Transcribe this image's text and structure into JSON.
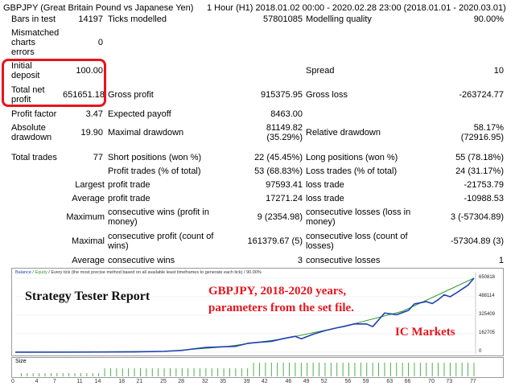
{
  "report": {
    "symbol_line": "GBPJPY (Great Britain Pound vs Japanese Yen)",
    "period_line": "1 Hour (H1) 2018.01.02 00:00 - 2020.02.28 23:00 (2018.01.01 - 2020.03.01)"
  },
  "stats": {
    "bars_label": "Bars in test",
    "bars_value": "14197",
    "ticks_label": "Ticks modelled",
    "ticks_value": "57801085",
    "quality_label": "Modelling quality",
    "quality_value": "90.00%",
    "mismatch_label_1": "Mismatched",
    "mismatch_label_2": "charts",
    "mismatch_label_3": "errors",
    "mismatch_value": "0",
    "deposit_label_1": "Initial",
    "deposit_label_2": "deposit",
    "deposit_value": "100.00",
    "spread_label": "Spread",
    "spread_value": "10",
    "netprofit_label_1": "Total net",
    "netprofit_label_2": "profit",
    "netprofit_value": "651651.18",
    "gross_profit_label": "Gross profit",
    "gross_profit_value": "915375.95",
    "gross_loss_label": "Gross loss",
    "gross_loss_value": "-263724.77",
    "pf_label": "Profit factor",
    "pf_value": "3.47",
    "ep_label": "Expected payoff",
    "ep_value": "8463.00",
    "absdd_label_1": "Absolute",
    "absdd_label_2": "drawdown",
    "absdd_value": "19.90",
    "maxdd_label": "Maximal drawdown",
    "maxdd_value_1": "81149.82",
    "maxdd_value_2": "(35.29%)",
    "reldd_label": "Relative drawdown",
    "reldd_value_1": "58.17%",
    "reldd_value_2": "(72916.95)",
    "trades_label": "Total trades",
    "trades_value": "77",
    "short_label": "Short positions (won %)",
    "short_value": "22 (45.45%)",
    "long_label": "Long positions (won %)",
    "long_value": "55 (78.18%)",
    "ptrades_label": "Profit trades (% of total)",
    "ptrades_value": "53 (68.83%)",
    "ltrades_label": "Loss trades (% of total)",
    "ltrades_value": "24 (31.17%)",
    "largest_label": "Largest",
    "largest_profit_label": "profit trade",
    "largest_profit_value": "97593.41",
    "largest_loss_label": "loss trade",
    "largest_loss_value": "-21753.79",
    "average_label": "Average",
    "avg_profit_label": "profit trade",
    "avg_profit_value": "17271.24",
    "avg_loss_label": "loss trade",
    "avg_loss_value": "-10988.53",
    "maximum_label": "Maximum",
    "max_wins_label_1": "consecutive wins (profit in",
    "max_wins_label_2": "money)",
    "max_wins_value": "9 (2354.98)",
    "max_losses_label_1": "consecutive losses (loss in",
    "max_losses_label_2": "money)",
    "max_losses_value": "3 (-57304.89)",
    "maximal_label": "Maximal",
    "maximal_profit_label_1": "consecutive profit (count of",
    "maximal_profit_label_2": "wins)",
    "maximal_profit_value": "161379.67 (5)",
    "maximal_loss_label_1": "consecutive loss (count of",
    "maximal_loss_label_2": "losses)",
    "maximal_loss_value": "-57304.89 (3)",
    "avg_consec_label": "Average",
    "avg_wins_label": "consecutive wins",
    "avg_wins_value": "3",
    "avg_losses_label": "consecutive losses",
    "avg_losses_value": "1"
  },
  "overlay": {
    "title": "Strategy Tester Report",
    "line1": "GBPJPY,  2018-2020 years,",
    "line2": "parameters from the set file.",
    "broker": "IC Markets",
    "red_color": "#e8141c"
  },
  "chart_data": {
    "type": "line",
    "legend_balance": "Balance",
    "legend_sep": " / ",
    "legend_equity": "Equity",
    "legend_rest": " / Every tick (the most precise method based on all available least timeframes to generate each tick) / 90.00%",
    "y_ticks": [
      "650818",
      "488114",
      "325409",
      "162705",
      "0"
    ],
    "ylim": [
      0,
      650818
    ],
    "x_ticks": [
      "0",
      "4",
      "7",
      "11",
      "14",
      "18",
      "21",
      "25",
      "28",
      "32",
      "35",
      "39",
      "42",
      "46",
      "49",
      "52",
      "56",
      "59",
      "63",
      "66",
      "70",
      "73",
      "77"
    ],
    "xlim": [
      0,
      77
    ],
    "series": [
      {
        "name": "Balance",
        "color": "#1f3fb0",
        "x": [
          0,
          10,
          20,
          25,
          28,
          30,
          32,
          35,
          37,
          39,
          41,
          43,
          45,
          47,
          48,
          50,
          52,
          54,
          55,
          57,
          59,
          60,
          62,
          64,
          66,
          67,
          69,
          70,
          71,
          72,
          73,
          74,
          75,
          76,
          77
        ],
        "values": [
          100,
          800,
          3000,
          8000,
          16000,
          30000,
          42000,
          48000,
          52000,
          78000,
          88000,
          96000,
          120000,
          140000,
          118000,
          158000,
          190000,
          215000,
          225000,
          250000,
          248000,
          225000,
          345000,
          330000,
          368000,
          425000,
          445000,
          428000,
          462000,
          505000,
          488000,
          520000,
          555000,
          590000,
          651651
        ]
      },
      {
        "name": "Equity",
        "color": "#2a9a2a",
        "x": [
          0,
          25,
          35,
          45,
          55,
          65,
          77
        ],
        "values": [
          100,
          7000,
          47000,
          118000,
          225000,
          360000,
          651651
        ]
      }
    ],
    "size_label": "Size",
    "size_color": "#3aa83a"
  }
}
